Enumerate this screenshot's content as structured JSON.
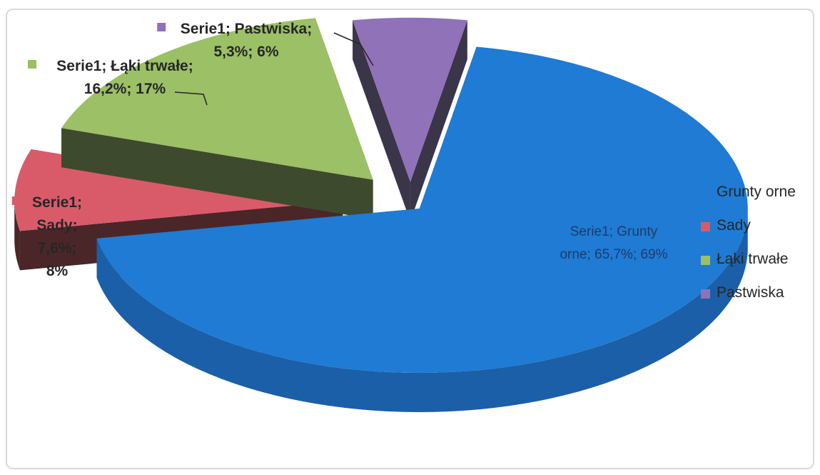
{
  "chart_data": {
    "type": "pie",
    "series_name": "Serie1",
    "categories": [
      "Grunty orne",
      "Sady",
      "Łąki trwałe",
      "Pastwiska"
    ],
    "values": [
      65.7,
      7.6,
      16.2,
      5.3
    ],
    "rounded_percent": [
      69,
      8,
      17,
      6
    ],
    "data_labels": [
      [
        "Serie1; Grunty",
        "orne; 65,7%; 69%"
      ],
      [
        "Serie1;",
        "Sady;",
        "7,6%;",
        "8%"
      ],
      [
        "Serie1; Łąki trwałe;",
        "16,2%; 17%"
      ],
      [
        "Serie1; Pastwiska;",
        "5,3%; 6%"
      ]
    ],
    "legend": [
      "Grunty orne",
      "Sady",
      "Łąki trwałe",
      "Pastwiska"
    ],
    "legend_position": "right",
    "colors": [
      "#1f7bd3",
      "#d95b6a",
      "#9cc065",
      "#8f72b8"
    ],
    "side_colors": [
      "#1b5fa8",
      "#4a2628",
      "#3e4a2d",
      "#3a3548"
    ],
    "exploded": true,
    "style": "3d"
  }
}
